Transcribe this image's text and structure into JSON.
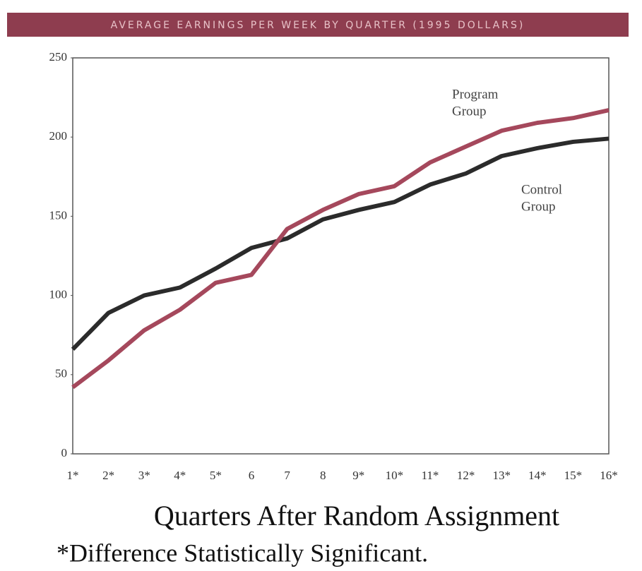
{
  "chart_data": {
    "type": "line",
    "title": "AVERAGE EARNINGS PER WEEK BY QUARTER (1995 DOLLARS)",
    "x_label": "Quarters After Random Assignment",
    "footnote": "*Difference Statistically Significant.",
    "categories": [
      "1*",
      "2*",
      "3*",
      "4*",
      "5*",
      "6",
      "7",
      "8",
      "9*",
      "10*",
      "11*",
      "12*",
      "13*",
      "14*",
      "15*",
      "16*"
    ],
    "series": [
      {
        "name": "Control Group",
        "color": "#2b2b2b",
        "values": [
          66,
          89,
          100,
          105,
          117,
          130,
          136,
          148,
          154,
          159,
          170,
          177,
          188,
          193,
          197,
          199
        ]
      },
      {
        "name": "Program Group",
        "color": "#a5485c",
        "values": [
          42,
          59,
          78,
          91,
          108,
          113,
          142,
          154,
          164,
          169,
          184,
          194,
          204,
          209,
          212,
          217
        ]
      }
    ],
    "annotations": [
      {
        "lines": [
          "Program",
          "Group"
        ]
      },
      {
        "lines": [
          "Control",
          "Group"
        ]
      }
    ],
    "ylim": [
      0,
      250
    ],
    "yticks": [
      0,
      50,
      100,
      150,
      200,
      250
    ],
    "grid": false
  }
}
